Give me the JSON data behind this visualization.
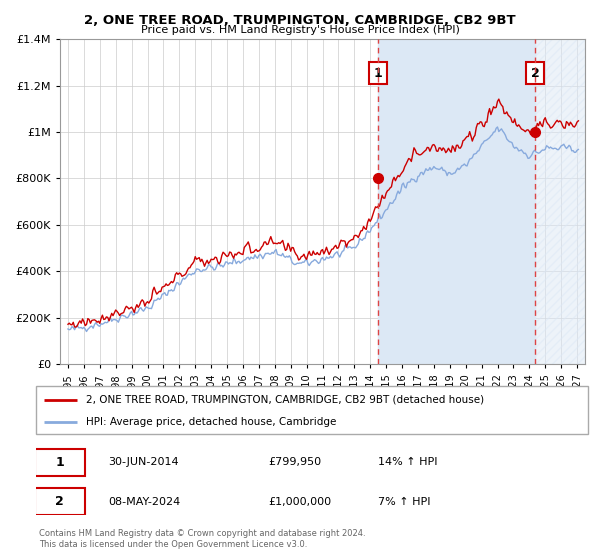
{
  "title": "2, ONE TREE ROAD, TRUMPINGTON, CAMBRIDGE, CB2 9BT",
  "subtitle": "Price paid vs. HM Land Registry's House Price Index (HPI)",
  "legend_line1": "2, ONE TREE ROAD, TRUMPINGTON, CAMBRIDGE, CB2 9BT (detached house)",
  "legend_line2": "HPI: Average price, detached house, Cambridge",
  "annotation1_label": "1",
  "annotation1_date": "30-JUN-2014",
  "annotation1_price": "£799,950",
  "annotation1_hpi": "14% ↑ HPI",
  "annotation2_label": "2",
  "annotation2_date": "08-MAY-2024",
  "annotation2_price": "£1,000,000",
  "annotation2_hpi": "7% ↑ HPI",
  "footer": "Contains HM Land Registry data © Crown copyright and database right 2024.\nThis data is licensed under the Open Government Licence v3.0.",
  "line1_color": "#cc0000",
  "line2_color": "#88aadd",
  "fill_color": "#dce8f5",
  "hatch_color": "#cccccc",
  "vline_color": "#dd4444",
  "background_color": "#ffffff",
  "ylim": [
    0,
    1400000
  ],
  "yticks": [
    0,
    200000,
    400000,
    600000,
    800000,
    1000000,
    1200000,
    1400000
  ],
  "xlim_start": 1994.5,
  "xlim_end": 2027.5,
  "sale1_x": 2014.5,
  "sale1_y": 799950,
  "sale2_x": 2024.35,
  "sale2_y": 1000000
}
